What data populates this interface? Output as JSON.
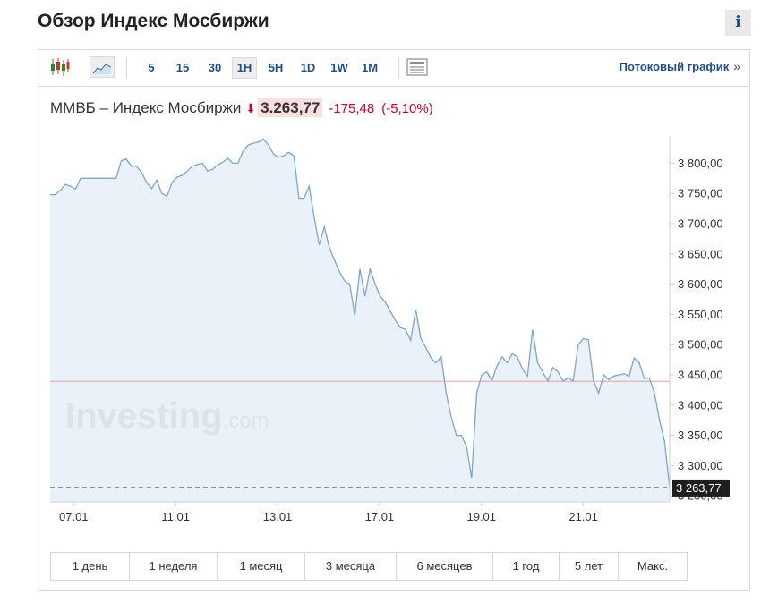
{
  "page": {
    "title": "Обзор Индекс Мосбиржи",
    "info_label": "i"
  },
  "toolbar": {
    "icons": [
      "candlestick-chart-icon",
      "area-chart-icon",
      "chart-settings-icon"
    ],
    "timeframes": [
      {
        "label": "5",
        "active": false
      },
      {
        "label": "15",
        "active": false
      },
      {
        "label": "30",
        "active": false
      },
      {
        "label": "1H",
        "active": true
      },
      {
        "label": "5H",
        "active": false
      },
      {
        "label": "1D",
        "active": false
      },
      {
        "label": "1W",
        "active": false
      },
      {
        "label": "1M",
        "active": false
      }
    ],
    "stream_label": "Потоковый график",
    "stream_chevron": "»"
  },
  "quote": {
    "name": "ММВБ – Индекс Мосбиржи",
    "arrow": "⬇",
    "price": "3.263,77",
    "change": "-175,48",
    "change_pct": "(-5,10%)"
  },
  "range_buttons": [
    "1 день",
    "1 неделя",
    "1 месяц",
    "3 месяца",
    "6 месяцев",
    "1 год",
    "5 лет",
    "Макс."
  ],
  "colors": {
    "accent": "#1a4f8b",
    "negative": "#d0021b",
    "line": "#7aa6cb",
    "area": "#e7eff7",
    "prev_close": "#e8a0a0"
  },
  "watermark": {
    "main": "Investing",
    "suffix": ".com"
  },
  "chart_data": {
    "type": "area",
    "x_ticks": [
      {
        "label": "07.01",
        "pos": 3
      },
      {
        "label": "11.01",
        "pos": 16
      },
      {
        "label": "13.01",
        "pos": 29
      },
      {
        "label": "17.01",
        "pos": 42
      },
      {
        "label": "19.01",
        "pos": 55
      },
      {
        "label": "21.01",
        "pos": 68
      }
    ],
    "x_range": [
      0,
      79
    ],
    "y_ticks": [
      {
        "value": 3800,
        "label": "3 800,00"
      },
      {
        "value": 3750,
        "label": "3 750,00"
      },
      {
        "value": 3700,
        "label": "3 700,00"
      },
      {
        "value": 3650,
        "label": "3 650,00"
      },
      {
        "value": 3600,
        "label": "3 600,00"
      },
      {
        "value": 3550,
        "label": "3 550,00"
      },
      {
        "value": 3500,
        "label": "3 500,00"
      },
      {
        "value": 3450,
        "label": "3 450,00"
      },
      {
        "value": 3400,
        "label": "3 400,00"
      },
      {
        "value": 3350,
        "label": "3 350,00"
      },
      {
        "value": 3300,
        "label": "3 300,00"
      },
      {
        "value": 3250,
        "label": "3 250,00"
      }
    ],
    "y_range": [
      3240,
      3845
    ],
    "previous_close": 3439.25,
    "last_value": 3263.77,
    "last_label": "3 263,77",
    "grid": false,
    "series": [
      {
        "values": [
          3748,
          3748,
          3755,
          3765,
          3762,
          3757,
          3775,
          3775,
          3775,
          3775,
          3775,
          3775,
          3775,
          3775,
          3804,
          3807,
          3795,
          3795,
          3785,
          3768,
          3758,
          3772,
          3750,
          3745,
          3768,
          3777,
          3780,
          3787,
          3795,
          3798,
          3800,
          3787,
          3790,
          3797,
          3802,
          3808,
          3800,
          3800,
          3820,
          3830,
          3833,
          3835,
          3840,
          3830,
          3815,
          3810,
          3812,
          3818,
          3812,
          3742,
          3742,
          3762,
          3710,
          3665,
          3695,
          3660,
          3640,
          3620,
          3605,
          3600,
          3548,
          3625,
          3580,
          3625,
          3600,
          3580,
          3570,
          3555,
          3540,
          3528,
          3525,
          3507,
          3558,
          3510,
          3495,
          3478,
          3470,
          3480,
          3420,
          3380,
          3350,
          3350,
          3332,
          3280,
          3420,
          3450,
          3455,
          3440,
          3465,
          3480,
          3470,
          3485,
          3480,
          3460,
          3448,
          3525,
          3470,
          3455,
          3440,
          3462,
          3455,
          3440,
          3445,
          3440,
          3500,
          3510,
          3508,
          3440,
          3420,
          3450,
          3442,
          3448,
          3450,
          3452,
          3448,
          3478,
          3470,
          3444,
          3445,
          3420,
          3375,
          3340,
          3263.77
        ]
      }
    ]
  }
}
